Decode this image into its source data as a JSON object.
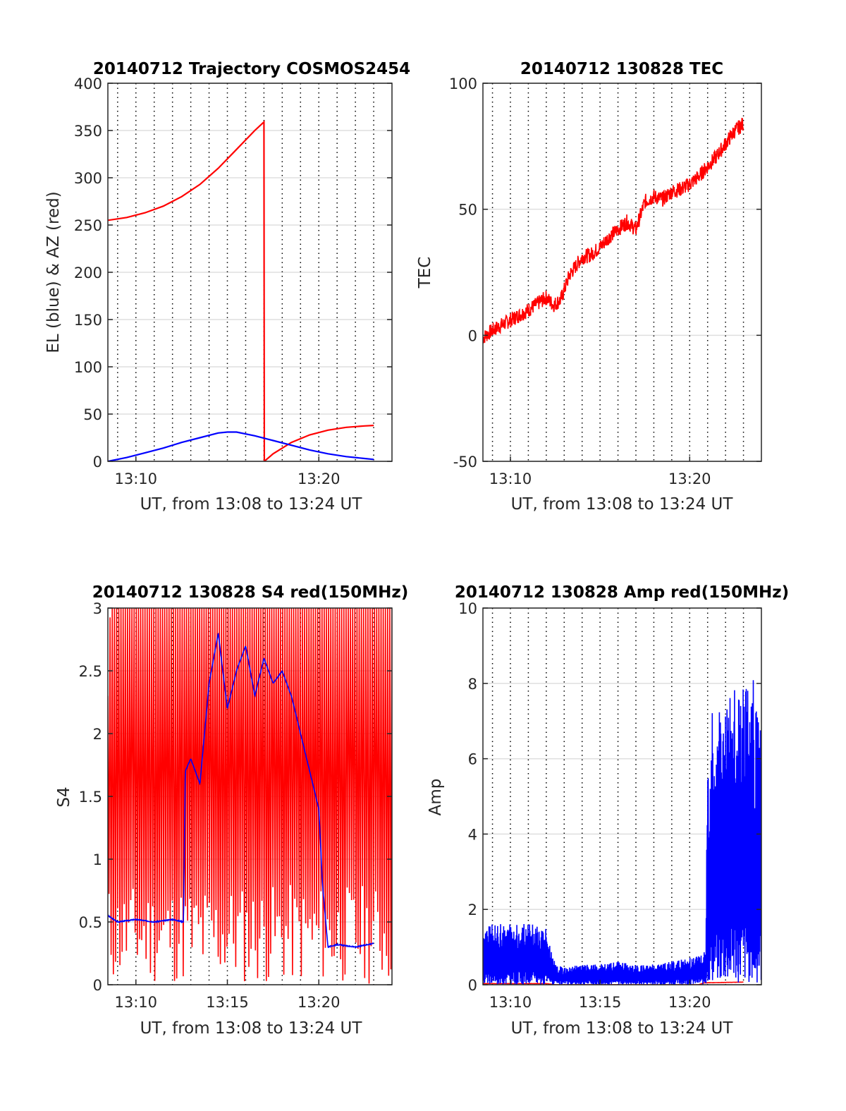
{
  "colors": {
    "series_red": "#ff0000",
    "series_blue": "#0000ff",
    "axis": "#262626",
    "grid": "#dfdfdf",
    "vgrid": "#000000"
  },
  "chart_data": [
    {
      "type": "line",
      "title": "20140712 Trajectory COSMOS2454",
      "xlabel": "UT, from 13:08 to 13:24 UT",
      "ylabel": "EL (blue) & AZ (red)",
      "xlim": [
        "13:08:28",
        "13:24:00"
      ],
      "ylim": [
        0,
        400
      ],
      "yticks": [
        0,
        50,
        100,
        150,
        200,
        250,
        300,
        350,
        400
      ],
      "xticks": [
        {
          "t": "13:10",
          "m": 10
        },
        {
          "t": "13:20",
          "m": 20
        }
      ],
      "grid": true,
      "series": [
        {
          "color": "red",
          "kind": "curve",
          "values": [
            [
              8.47,
              255
            ],
            [
              9.5,
              258
            ],
            [
              10.5,
              263
            ],
            [
              11.5,
              270
            ],
            [
              12.5,
              280
            ],
            [
              13.5,
              293
            ],
            [
              14.5,
              310
            ],
            [
              15.5,
              330
            ],
            [
              16.5,
              350
            ],
            [
              17.0,
              359
            ],
            [
              17.02,
              0
            ],
            [
              17.5,
              8
            ],
            [
              18.5,
              20
            ],
            [
              19.5,
              28
            ],
            [
              20.5,
              33
            ],
            [
              21.5,
              36
            ],
            [
              22.5,
              37.5
            ],
            [
              23.0,
              38
            ]
          ]
        },
        {
          "color": "blue",
          "kind": "curve",
          "values": [
            [
              8.47,
              0
            ],
            [
              9.5,
              4
            ],
            [
              10.5,
              9
            ],
            [
              11.5,
              14
            ],
            [
              12.5,
              20
            ],
            [
              13.5,
              25
            ],
            [
              14.5,
              30
            ],
            [
              15.0,
              31
            ],
            [
              15.5,
              31
            ],
            [
              16.5,
              27
            ],
            [
              17.5,
              22
            ],
            [
              18.5,
              17
            ],
            [
              19.5,
              12
            ],
            [
              20.5,
              8
            ],
            [
              21.5,
              5
            ],
            [
              22.5,
              3
            ],
            [
              23.0,
              2
            ]
          ]
        }
      ]
    },
    {
      "type": "line",
      "title": "20140712 130828 TEC",
      "xlabel": "UT, from 13:08 to 13:24 UT",
      "ylabel": "TEC",
      "xlim": [
        "13:08:28",
        "13:24:00"
      ],
      "ylim": [
        -50,
        100
      ],
      "yticks": [
        -50,
        0,
        50,
        100
      ],
      "xticks": [
        {
          "t": "13:10",
          "m": 10
        },
        {
          "t": "13:20",
          "m": 20
        }
      ],
      "grid": true,
      "series": [
        {
          "color": "red",
          "kind": "noisy",
          "seed": 7,
          "noise": 0.8,
          "values": [
            [
              8.47,
              -1
            ],
            [
              9.0,
              2
            ],
            [
              10.0,
              6
            ],
            [
              11.0,
              10
            ],
            [
              12.0,
              15
            ],
            [
              12.4,
              12
            ],
            [
              12.8,
              14
            ],
            [
              13.3,
              24
            ],
            [
              14.0,
              31
            ],
            [
              14.5,
              32
            ],
            [
              15.0,
              35
            ],
            [
              15.5,
              39
            ],
            [
              16.0,
              42
            ],
            [
              16.5,
              45
            ],
            [
              17.0,
              42
            ],
            [
              17.5,
              53
            ],
            [
              18.0,
              55
            ],
            [
              18.5,
              54
            ],
            [
              19.0,
              57
            ],
            [
              19.5,
              58
            ],
            [
              20.0,
              60
            ],
            [
              20.5,
              63
            ],
            [
              21.0,
              67
            ],
            [
              21.5,
              71
            ],
            [
              22.0,
              76
            ],
            [
              22.5,
              81
            ],
            [
              23.0,
              84
            ]
          ]
        }
      ]
    },
    {
      "type": "line",
      "title": "20140712 130828 S4 red(150MHz)",
      "xlabel": "UT, from 13:08 to 13:24 UT",
      "ylabel": "S4",
      "xlim": [
        "13:08:28",
        "13:24:00"
      ],
      "ylim": [
        0,
        3
      ],
      "yticks": [
        0,
        0.5,
        1,
        1.5,
        2,
        2.5,
        3
      ],
      "xticks": [
        {
          "t": "13:10",
          "m": 10
        },
        {
          "t": "13:15",
          "m": 15
        },
        {
          "t": "13:20",
          "m": 20
        }
      ],
      "grid": true,
      "series": [
        {
          "color": "red",
          "kind": "spiky",
          "seed": 11,
          "values": [
            [
              8.47,
              2.3
            ],
            [
              8.6,
              3
            ],
            [
              9.0,
              3
            ],
            [
              10.0,
              3
            ],
            [
              11.0,
              3
            ],
            [
              12.0,
              3
            ],
            [
              13.0,
              3
            ],
            [
              14.0,
              3
            ],
            [
              15.0,
              3
            ],
            [
              16.0,
              3
            ],
            [
              17.0,
              3
            ],
            [
              18.0,
              3
            ],
            [
              19.0,
              3
            ],
            [
              20.0,
              3
            ],
            [
              21.0,
              3
            ],
            [
              22.0,
              3
            ],
            [
              23.0,
              3
            ]
          ]
        },
        {
          "color": "blue",
          "kind": "noisy",
          "seed": 3,
          "noise": 0.05,
          "values": [
            [
              8.47,
              0.55
            ],
            [
              9.0,
              0.5
            ],
            [
              10.0,
              0.52
            ],
            [
              11.0,
              0.5
            ],
            [
              12.0,
              0.52
            ],
            [
              12.6,
              0.5
            ],
            [
              12.7,
              1.7
            ],
            [
              13.0,
              1.8
            ],
            [
              13.5,
              1.6
            ],
            [
              14.0,
              2.4
            ],
            [
              14.5,
              2.8
            ],
            [
              15.0,
              2.2
            ],
            [
              15.5,
              2.5
            ],
            [
              16.0,
              2.7
            ],
            [
              16.5,
              2.3
            ],
            [
              17.0,
              2.6
            ],
            [
              17.5,
              2.4
            ],
            [
              18.0,
              2.5
            ],
            [
              18.5,
              2.3
            ],
            [
              19.0,
              2.0
            ],
            [
              19.5,
              1.7
            ],
            [
              20.0,
              1.4
            ],
            [
              20.2,
              0.8
            ],
            [
              20.5,
              0.3
            ],
            [
              21.0,
              0.32
            ],
            [
              22.0,
              0.3
            ],
            [
              23.0,
              0.33
            ]
          ]
        }
      ]
    },
    {
      "type": "line",
      "title": "20140712 130828 Amp red(150MHz)",
      "xlabel": "UT, from 13:08 to 13:24 UT",
      "ylabel": "Amp",
      "xlim": [
        "13:08:28",
        "13:24:00"
      ],
      "ylim": [
        0,
        10
      ],
      "yticks": [
        0,
        2,
        4,
        6,
        8,
        10
      ],
      "xticks": [
        {
          "t": "13:10",
          "m": 10
        },
        {
          "t": "13:15",
          "m": 15
        },
        {
          "t": "13:20",
          "m": 20
        }
      ],
      "grid": true,
      "series": [
        {
          "color": "red",
          "kind": "noisy",
          "seed": 5,
          "noise": 0.01,
          "values": [
            [
              8.47,
              0.03
            ],
            [
              12.0,
              0.03
            ],
            [
              12.5,
              0.0
            ],
            [
              20.5,
              0.0
            ],
            [
              20.8,
              0.05
            ],
            [
              23.0,
              0.07
            ]
          ]
        },
        {
          "color": "blue",
          "kind": "band",
          "seed": 9,
          "values": [
            [
              8.47,
              0.8
            ],
            [
              9.0,
              0.9
            ],
            [
              10.0,
              0.9
            ],
            [
              11.0,
              0.9
            ],
            [
              12.0,
              0.85
            ],
            [
              12.5,
              0.3
            ],
            [
              13.0,
              0.25
            ],
            [
              14.0,
              0.3
            ],
            [
              15.0,
              0.3
            ],
            [
              16.0,
              0.35
            ],
            [
              17.0,
              0.3
            ],
            [
              18.0,
              0.3
            ],
            [
              19.0,
              0.35
            ],
            [
              20.0,
              0.4
            ],
            [
              20.9,
              0.5
            ],
            [
              21.0,
              3.5
            ],
            [
              21.5,
              4.5
            ],
            [
              22.0,
              4.3
            ],
            [
              22.5,
              4.5
            ],
            [
              23.0,
              4.5
            ]
          ]
        }
      ]
    }
  ]
}
